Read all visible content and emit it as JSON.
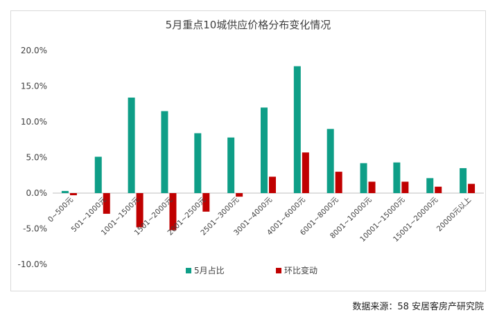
{
  "source_text": "数据来源：58 安居客房产研究院",
  "colors": {
    "share": "#0e9e87",
    "change": "#c00000",
    "axis": "#bfbfbf"
  },
  "chart_data": {
    "type": "bar",
    "title": "5月重点10城供应价格分布变化情况",
    "xlabel": "",
    "ylabel": "",
    "ylim": [
      -0.1,
      0.2
    ],
    "yticks": [
      0.2,
      0.15,
      0.1,
      0.05,
      0.0,
      -0.05,
      -0.1
    ],
    "ytick_labels": [
      "20.0%",
      "15.0%",
      "10.0%",
      "5.0%",
      "0.0%",
      "-5.0%",
      "-10.0%"
    ],
    "grid": false,
    "legend": "bottom",
    "categories": [
      "0~500元",
      "501~1000元",
      "1001~1500元",
      "1501~2000元",
      "2001~2500元",
      "2501~3000元",
      "3001~4000元",
      "4001~6000元",
      "6001~8000元",
      "8001~10000元",
      "10001~15000元",
      "15001~20000元",
      "20000元以上"
    ],
    "series": [
      {
        "name": "5月占比",
        "values": [
          0.003,
          0.051,
          0.134,
          0.115,
          0.084,
          0.078,
          0.12,
          0.178,
          0.09,
          0.042,
          0.043,
          0.021,
          0.035
        ]
      },
      {
        "name": "环比变动",
        "values": [
          -0.003,
          -0.029,
          -0.048,
          -0.052,
          -0.026,
          -0.005,
          0.023,
          0.057,
          0.03,
          0.016,
          0.016,
          0.009,
          0.013
        ]
      }
    ]
  }
}
